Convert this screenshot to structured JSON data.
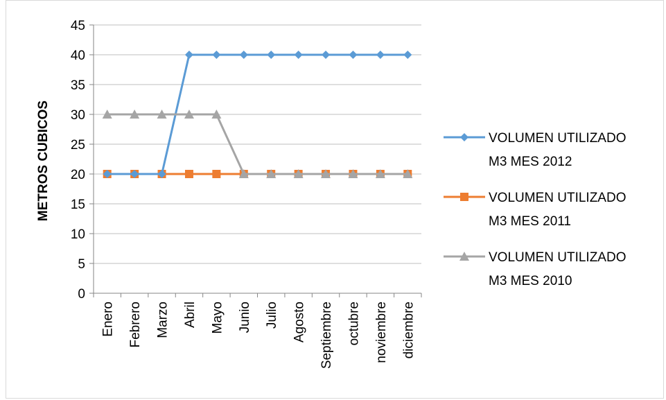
{
  "chart_data": {
    "type": "line",
    "title": "",
    "xlabel": "",
    "ylabel": "METROS CUBICOS",
    "ylim": [
      0,
      45
    ],
    "ytick_step": 5,
    "grid": "horizontal",
    "legend_position": "right",
    "categories": [
      "Enero",
      "Febrero",
      "Marzo",
      "Abril",
      "Mayo",
      "Junio",
      "Julio",
      "Agosto",
      "Septiembre",
      "octubre",
      "noviembre",
      "diciembre"
    ],
    "series": [
      {
        "name": "VOLUMEN UTILIZADO M3 MES 2012",
        "legend_lines": [
          "VOLUMEN UTILIZADO",
          "M3 MES 2012"
        ],
        "color": "#5b9bd5",
        "marker": "diamond",
        "values": [
          20,
          20,
          20,
          40,
          40,
          40,
          40,
          40,
          40,
          40,
          40,
          40
        ]
      },
      {
        "name": "VOLUMEN UTILIZADO M3 MES 2011",
        "legend_lines": [
          "VOLUMEN UTILIZADO",
          "M3 MES 2011"
        ],
        "color": "#ed7d31",
        "marker": "square",
        "values": [
          20,
          20,
          20,
          20,
          20,
          20,
          20,
          20,
          20,
          20,
          20,
          20
        ]
      },
      {
        "name": "VOLUMEN UTILIZADO M3 MES 2010",
        "legend_lines": [
          "VOLUMEN UTILIZADO",
          "M3 MES 2010"
        ],
        "color": "#a5a5a5",
        "marker": "triangle",
        "values": [
          30,
          30,
          30,
          30,
          30,
          20,
          20,
          20,
          20,
          20,
          20,
          20
        ]
      }
    ]
  }
}
